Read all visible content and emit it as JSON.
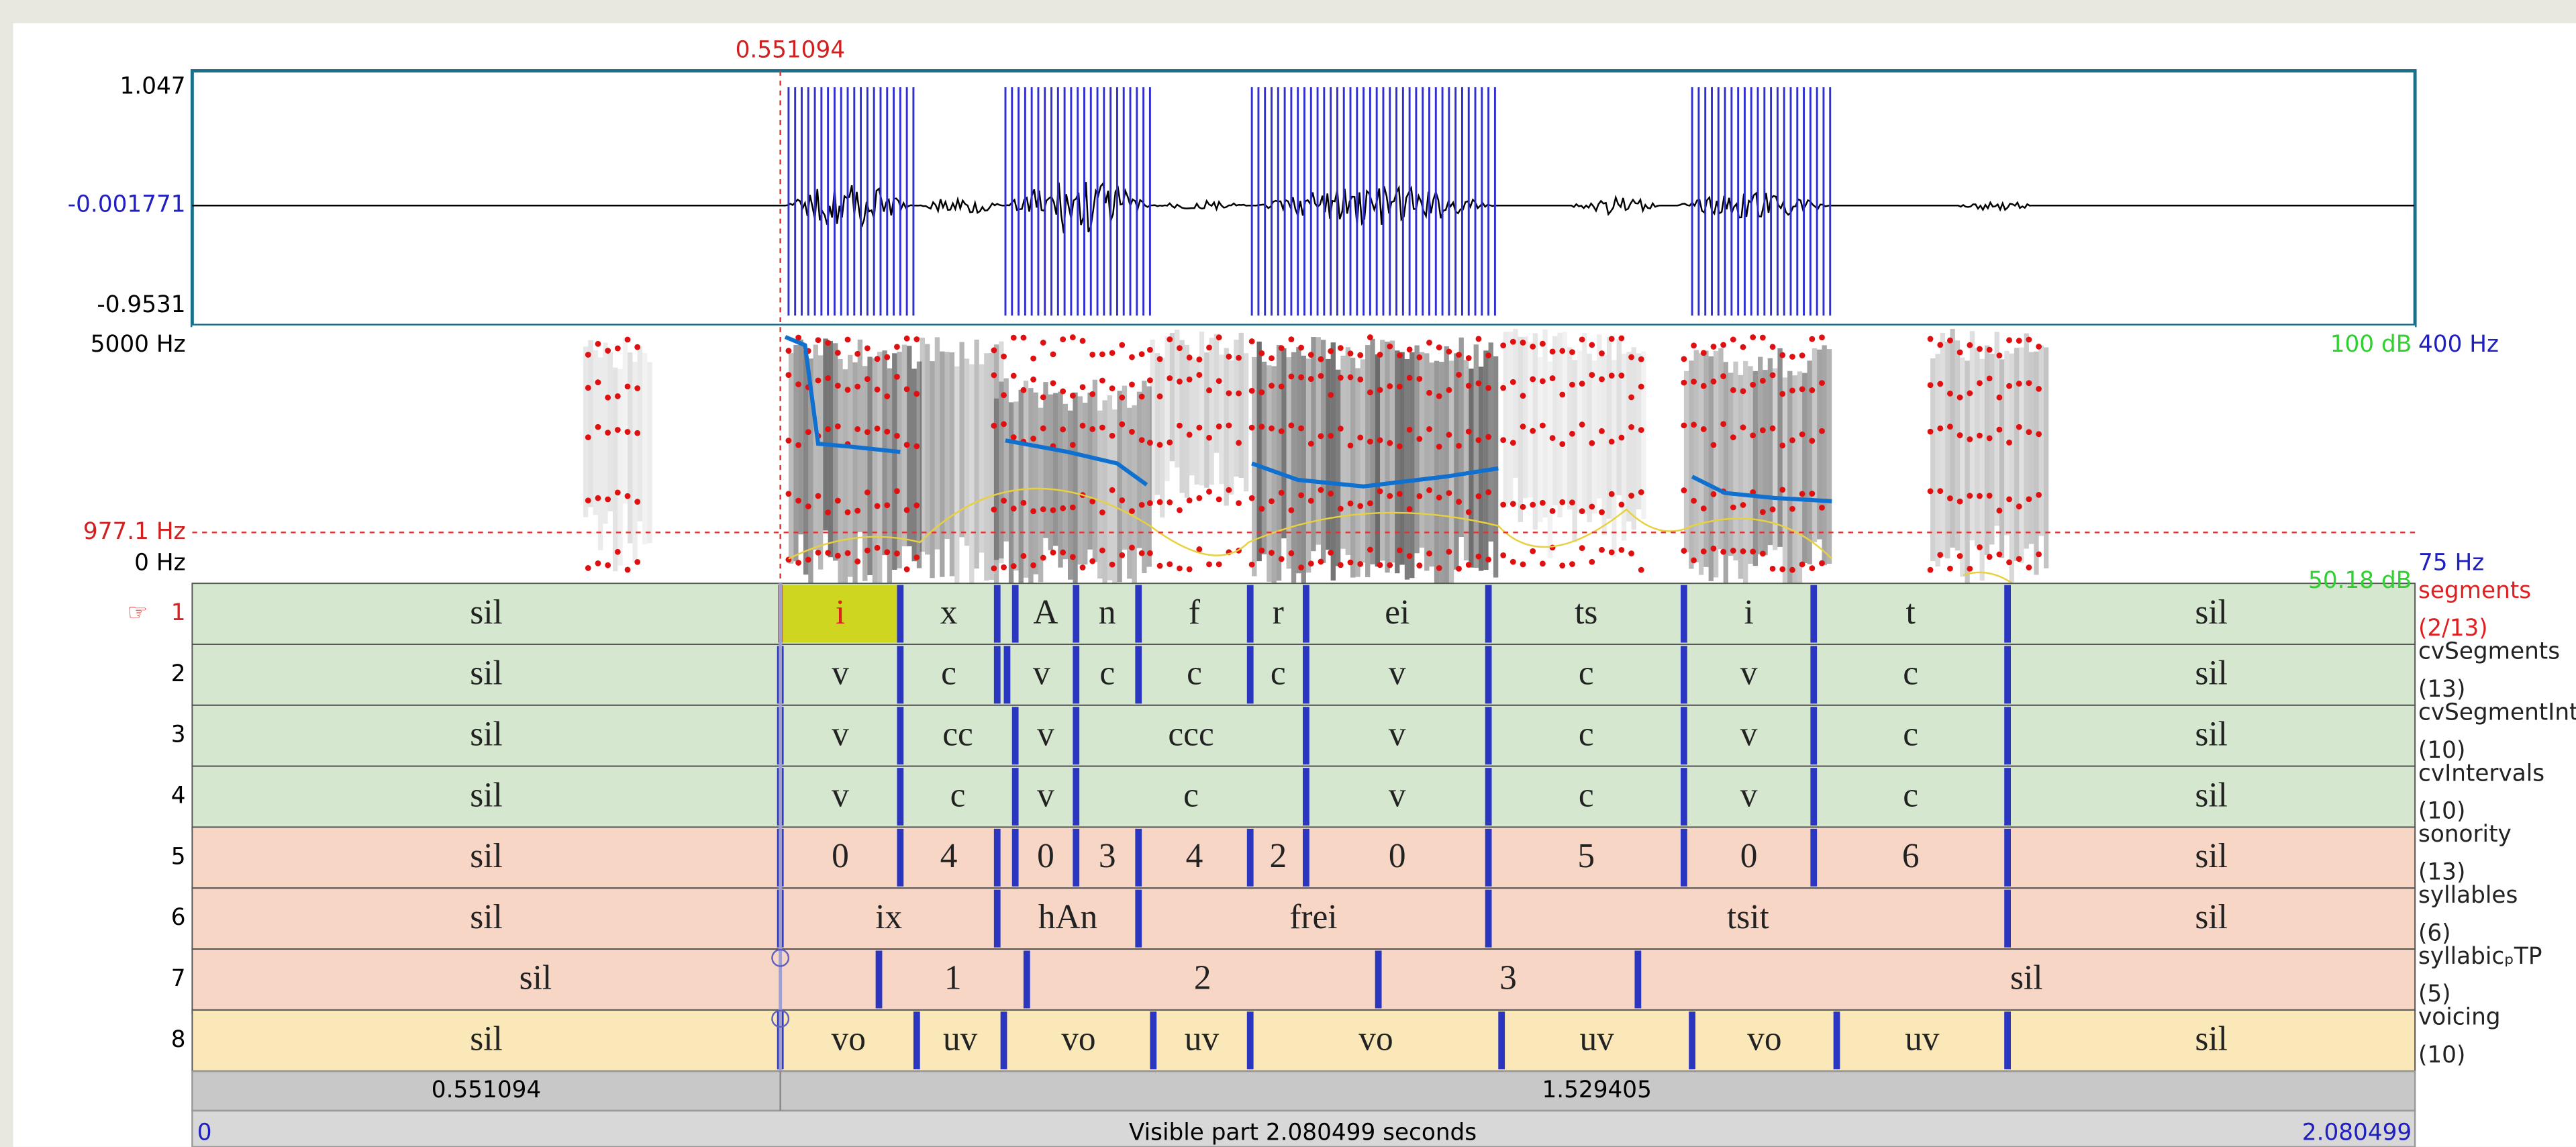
{
  "cursor_time": "0.551094",
  "waveform": {
    "max": "1.047",
    "mid": "-0.001771",
    "min": "-0.9531"
  },
  "spectrogram": {
    "top_frequency": "5000 Hz",
    "cursor_frequency": "977.1 Hz",
    "bottom_frequency": "0 Hz",
    "max_intensity": "100 dB",
    "pitch_top": "400 Hz",
    "pitch_bottom": "75 Hz",
    "min_intensity": "50.18 dB"
  },
  "tiers": [
    {
      "number": "1",
      "pointer": "☞",
      "name": "segments",
      "count": "(2/13)",
      "intervals": [
        "sil",
        "i",
        "x",
        null,
        "A",
        "n",
        "f",
        "r",
        "ei",
        "ts",
        "i",
        "t",
        "sil"
      ]
    },
    {
      "number": "2",
      "name": "cvSegments",
      "count": "(13)",
      "intervals": [
        "sil",
        "v",
        "c",
        null,
        "v",
        "c",
        "c",
        "c",
        "v",
        "c",
        "v",
        "c",
        "sil"
      ]
    },
    {
      "number": "3",
      "name": "cvSegmentInt",
      "count": "(10)",
      "intervals": [
        "sil",
        "v",
        "cc",
        "v",
        "ccc",
        "v",
        "c",
        "v",
        "c",
        "sil"
      ]
    },
    {
      "number": "4",
      "name": "cvIntervals",
      "count": "(10)",
      "intervals": [
        "sil",
        "v",
        "c",
        "v",
        "c",
        "v",
        "c",
        "v",
        "c",
        "sil"
      ]
    },
    {
      "number": "5",
      "name": "sonority",
      "count": "(13)",
      "intervals": [
        "sil",
        "0",
        "4",
        null,
        "0",
        "3",
        "4",
        "2",
        "0",
        "5",
        "0",
        "6",
        "sil"
      ]
    },
    {
      "number": "6",
      "name": "syllables",
      "count": "(6)",
      "intervals": [
        "sil",
        "ix",
        "hAn",
        "frei",
        "tsit",
        "sil"
      ]
    },
    {
      "number": "7",
      "name": "syllabicₚTP",
      "count": "(5)",
      "intervals": [
        "sil",
        "1",
        "2",
        "3",
        "sil"
      ]
    },
    {
      "number": "8",
      "name": "voicing",
      "count": "(10)",
      "intervals": [
        "sil",
        "vo",
        "uv",
        "vo",
        "uv",
        "vo",
        "uv",
        "vo",
        "uv",
        "sil"
      ]
    }
  ],
  "selection": {
    "start": "0.551094",
    "duration": "1.529405"
  },
  "window": {
    "start": "0",
    "label": "Visible part 2.080499 seconds",
    "end": "2.080499"
  }
}
